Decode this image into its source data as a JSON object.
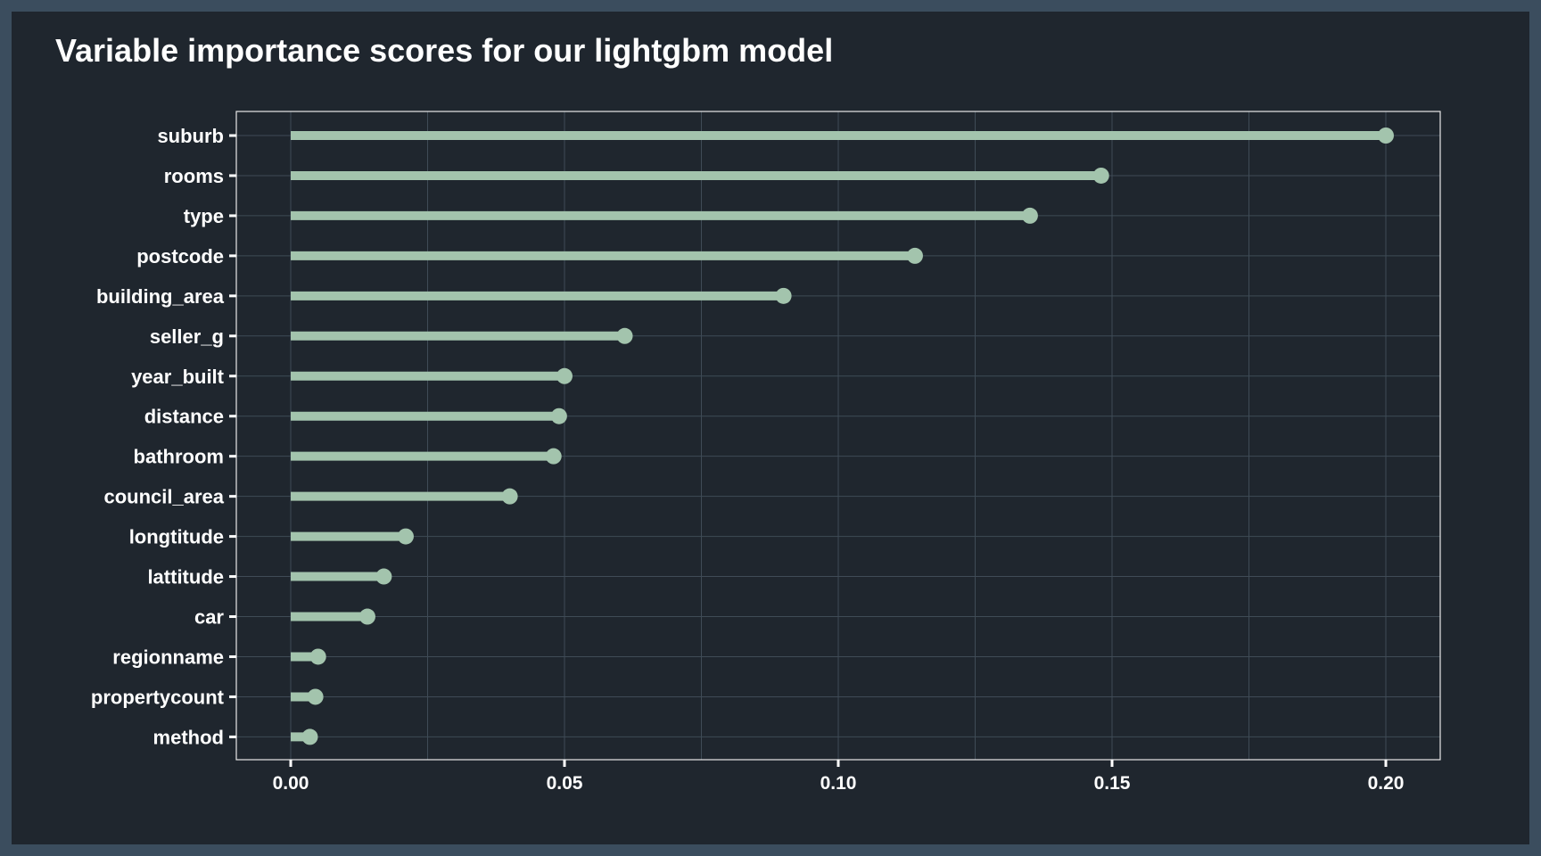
{
  "chart_data": {
    "type": "lollipop",
    "title": "Variable importance scores for our lightgbm model",
    "xlabel": "",
    "ylabel": "",
    "xlim": [
      -0.01,
      0.21
    ],
    "x_ticks": [
      "0.00",
      "0.05",
      "0.10",
      "0.15",
      "0.20"
    ],
    "x_tick_values": [
      0.0,
      0.05,
      0.1,
      0.15,
      0.2
    ],
    "categories": [
      "suburb",
      "rooms",
      "type",
      "postcode",
      "building_area",
      "seller_g",
      "year_built",
      "distance",
      "bathroom",
      "council_area",
      "longtitude",
      "lattitude",
      "car",
      "regionname",
      "propertycount",
      "method"
    ],
    "values": [
      0.2,
      0.148,
      0.135,
      0.114,
      0.09,
      0.061,
      0.05,
      0.049,
      0.048,
      0.04,
      0.021,
      0.017,
      0.014,
      0.005,
      0.0045,
      0.0035
    ],
    "grid": true,
    "colors": {
      "lollipop": "#a3c4ad",
      "background": "#1f262e",
      "outer_border": "#3b4d5e",
      "grid": "#3f4b56",
      "panel_border": "#e8e8e8",
      "text": "#ffffff"
    }
  }
}
